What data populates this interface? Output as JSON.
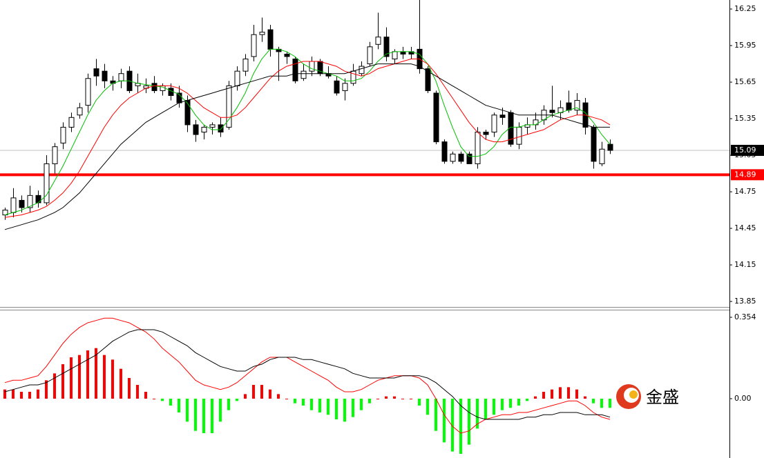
{
  "chart_data": [
    {
      "type": "candlestick",
      "open": [
        14.56,
        14.58,
        14.68,
        14.62,
        14.72,
        14.66,
        14.98,
        15.15,
        15.28,
        15.38,
        15.46,
        15.76,
        15.74,
        15.66,
        15.66,
        15.74,
        15.62,
        15.6,
        15.64,
        15.58,
        15.6,
        15.56,
        15.5,
        15.3,
        15.24,
        15.28,
        15.3,
        15.28,
        15.62,
        15.74,
        15.86,
        16.04,
        16.08,
        15.92,
        15.88,
        15.84,
        15.68,
        15.74,
        15.82,
        15.72,
        15.66,
        15.58,
        15.64,
        15.72,
        15.8,
        15.96,
        16.02,
        15.84,
        15.9,
        15.9,
        15.92,
        15.76,
        15.56,
        15.16,
        15,
        15.06,
        15.06,
        14.98,
        15.24,
        15.24,
        15.38,
        15.4,
        15.14,
        15.28,
        15.3,
        15.34,
        15.42,
        15.4,
        15.48,
        15.42,
        15.48,
        15.28,
        14.98,
        15.14
      ],
      "high": [
        14.62,
        14.78,
        14.72,
        14.8,
        14.76,
        15.05,
        15.15,
        15.32,
        15.4,
        15.48,
        15.72,
        15.84,
        15.8,
        15.7,
        15.76,
        15.78,
        15.72,
        15.68,
        15.7,
        15.64,
        15.64,
        15.62,
        15.54,
        15.34,
        15.3,
        15.32,
        15.36,
        15.66,
        15.78,
        15.88,
        16.12,
        16.18,
        16.12,
        15.94,
        15.9,
        15.86,
        15.8,
        15.86,
        15.84,
        15.78,
        15.7,
        15.68,
        15.8,
        15.82,
        15.98,
        16.22,
        16.1,
        15.92,
        15.94,
        15.94,
        16.36,
        15.78,
        15.58,
        15.18,
        15.08,
        15.08,
        15.08,
        15.28,
        15.26,
        15.4,
        15.44,
        15.42,
        15.32,
        15.36,
        15.4,
        15.46,
        15.62,
        15.5,
        15.58,
        15.56,
        15.52,
        15.3,
        15.16,
        15.18
      ],
      "low": [
        14.52,
        14.54,
        14.58,
        14.58,
        14.62,
        14.64,
        14.9,
        15.1,
        15.24,
        15.35,
        15.4,
        15.62,
        15.6,
        15.58,
        15.6,
        15.56,
        15.56,
        15.56,
        15.56,
        15.54,
        15.5,
        15.44,
        15.24,
        15.16,
        15.18,
        15.22,
        15.2,
        15.26,
        15.58,
        15.7,
        15.82,
        15.98,
        15.86,
        15.66,
        15.8,
        15.64,
        15.66,
        15.7,
        15.7,
        15.68,
        15.54,
        15.5,
        15.62,
        15.7,
        15.78,
        15.92,
        15.82,
        15.8,
        15.84,
        15.84,
        15.72,
        15.56,
        15.14,
        14.98,
        14.98,
        14.98,
        14.98,
        14.94,
        15.18,
        15.2,
        15.3,
        15.12,
        15.1,
        15.22,
        15.26,
        15.3,
        15.36,
        15.34,
        15.4,
        15.38,
        15.22,
        14.94,
        14.96,
        15.06
      ],
      "close": [
        14.6,
        14.7,
        14.62,
        14.72,
        14.66,
        14.98,
        15.12,
        15.28,
        15.36,
        15.44,
        15.68,
        15.7,
        15.66,
        15.64,
        15.72,
        15.58,
        15.64,
        15.62,
        15.58,
        15.62,
        15.54,
        15.48,
        15.3,
        15.22,
        15.28,
        15.3,
        15.24,
        15.62,
        15.74,
        15.84,
        16.04,
        16.06,
        15.92,
        15.9,
        15.86,
        15.66,
        15.74,
        15.82,
        15.72,
        15.7,
        15.56,
        15.64,
        15.74,
        15.78,
        15.94,
        16.02,
        15.86,
        15.9,
        15.88,
        15.88,
        15.76,
        15.58,
        15.16,
        15,
        15.06,
        15,
        14.98,
        15.24,
        15.22,
        15.38,
        15.36,
        15.14,
        15.28,
        15.3,
        15.34,
        15.42,
        15.4,
        15.44,
        15.42,
        15.5,
        15.28,
        15,
        15.1,
        15.09
      ],
      "up_color": "#ffffff",
      "down_color": "#000000",
      "moving_averages": [
        {
          "color": "#00c000",
          "values": [
            14.56,
            14.58,
            14.6,
            14.63,
            14.66,
            14.72,
            14.84,
            14.96,
            15.1,
            15.24,
            15.38,
            15.5,
            15.58,
            15.64,
            15.66,
            15.66,
            15.64,
            15.63,
            15.62,
            15.61,
            15.58,
            15.55,
            15.48,
            15.38,
            15.3,
            15.26,
            15.26,
            15.34,
            15.44,
            15.56,
            15.72,
            15.84,
            15.92,
            15.92,
            15.9,
            15.86,
            15.8,
            15.76,
            15.74,
            15.72,
            15.7,
            15.66,
            15.66,
            15.68,
            15.74,
            15.82,
            15.88,
            15.9,
            15.9,
            15.9,
            15.88,
            15.8,
            15.66,
            15.46,
            15.28,
            15.12,
            15.04,
            15.04,
            15.06,
            15.12,
            15.22,
            15.28,
            15.28,
            15.3,
            15.3,
            15.34,
            15.38,
            15.4,
            15.42,
            15.44,
            15.4,
            15.32,
            15.22,
            15.14
          ]
        },
        {
          "color": "#ff0000",
          "values": [
            14.54,
            14.55,
            14.56,
            14.58,
            14.6,
            14.63,
            14.68,
            14.74,
            14.82,
            14.92,
            15.04,
            15.16,
            15.28,
            15.38,
            15.46,
            15.52,
            15.56,
            15.6,
            15.62,
            15.62,
            15.62,
            15.6,
            15.56,
            15.5,
            15.44,
            15.4,
            15.36,
            15.36,
            15.38,
            15.44,
            15.52,
            15.6,
            15.68,
            15.74,
            15.78,
            15.8,
            15.82,
            15.82,
            15.82,
            15.8,
            15.78,
            15.74,
            15.72,
            15.7,
            15.72,
            15.76,
            15.78,
            15.8,
            15.82,
            15.84,
            15.84,
            15.8,
            15.72,
            15.62,
            15.52,
            15.42,
            15.32,
            15.24,
            15.18,
            15.16,
            15.16,
            15.18,
            15.2,
            15.22,
            15.24,
            15.26,
            15.3,
            15.34,
            15.36,
            15.38,
            15.38,
            15.36,
            15.34,
            15.3
          ]
        },
        {
          "color": "#000000",
          "values": [
            14.44,
            14.46,
            14.48,
            14.5,
            14.52,
            14.55,
            14.58,
            14.62,
            14.68,
            14.74,
            14.82,
            14.9,
            14.98,
            15.06,
            15.14,
            15.2,
            15.26,
            15.32,
            15.36,
            15.4,
            15.44,
            15.48,
            15.5,
            15.52,
            15.54,
            15.56,
            15.58,
            15.6,
            15.62,
            15.64,
            15.66,
            15.68,
            15.7,
            15.7,
            15.7,
            15.72,
            15.72,
            15.72,
            15.72,
            15.72,
            15.72,
            15.72,
            15.74,
            15.76,
            15.78,
            15.8,
            15.8,
            15.8,
            15.8,
            15.8,
            15.78,
            15.74,
            15.7,
            15.66,
            15.62,
            15.58,
            15.54,
            15.5,
            15.46,
            15.44,
            15.42,
            15.4,
            15.38,
            15.38,
            15.38,
            15.38,
            15.38,
            15.36,
            15.34,
            15.32,
            15.3,
            15.28,
            15.28,
            15.28
          ]
        }
      ],
      "ylim": [
        13.805,
        16.324
      ],
      "yticks": [
        13.85,
        14.15,
        14.45,
        14.75,
        15.05,
        15.35,
        15.65,
        15.95,
        16.25
      ],
      "current_price": 15.09,
      "current_price_color": "#000000",
      "current_line_color": "#c0c0c0",
      "support_level": 14.89,
      "support_color": "#ff0000"
    },
    {
      "type": "macd",
      "histogram": [
        0.04,
        0.04,
        0.03,
        0.03,
        0.04,
        0.08,
        0.11,
        0.15,
        0.18,
        0.19,
        0.21,
        0.22,
        0.19,
        0.17,
        0.13,
        0.09,
        0.06,
        0.03,
        0,
        -0.01,
        -0.03,
        -0.06,
        -0.1,
        -0.14,
        -0.15,
        -0.15,
        -0.1,
        -0.05,
        -0.01,
        0.02,
        0.06,
        0.06,
        0.04,
        0.02,
        0,
        -0.02,
        -0.03,
        -0.05,
        -0.06,
        -0.07,
        -0.09,
        -0.1,
        -0.08,
        -0.05,
        -0.02,
        0,
        0.01,
        0.01,
        0,
        0,
        -0.03,
        -0.07,
        -0.14,
        -0.19,
        -0.23,
        -0.24,
        -0.2,
        -0.13,
        -0.09,
        -0.07,
        -0.05,
        -0.04,
        -0.03,
        -0.01,
        0.01,
        0.03,
        0.04,
        0.05,
        0.05,
        0.04,
        0.01,
        -0.02,
        -0.04,
        -0.04
      ],
      "positive_color": "#ff0000",
      "negative_color": "#00ff00",
      "series": [
        {
          "color": "#ff0000",
          "values": [
            0.07,
            0.08,
            0.08,
            0.09,
            0.1,
            0.14,
            0.19,
            0.24,
            0.28,
            0.31,
            0.33,
            0.34,
            0.35,
            0.35,
            0.34,
            0.33,
            0.31,
            0.29,
            0.26,
            0.22,
            0.19,
            0.16,
            0.12,
            0.08,
            0.06,
            0.05,
            0.04,
            0.05,
            0.07,
            0.1,
            0.13,
            0.16,
            0.18,
            0.18,
            0.18,
            0.16,
            0.14,
            0.12,
            0.1,
            0.08,
            0.05,
            0.03,
            0.03,
            0.04,
            0.06,
            0.08,
            0.09,
            0.1,
            0.1,
            0.1,
            0.09,
            0.06,
            0,
            -0.07,
            -0.12,
            -0.15,
            -0.14,
            -0.11,
            -0.09,
            -0.08,
            -0.07,
            -0.07,
            -0.06,
            -0.06,
            -0.05,
            -0.04,
            -0.03,
            -0.02,
            -0.01,
            -0.01,
            -0.03,
            -0.06,
            -0.08,
            -0.09
          ]
        },
        {
          "color": "#000000",
          "values": [
            0.03,
            0.04,
            0.05,
            0.06,
            0.06,
            0.07,
            0.09,
            0.11,
            0.13,
            0.15,
            0.17,
            0.19,
            0.22,
            0.25,
            0.27,
            0.29,
            0.3,
            0.3,
            0.3,
            0.29,
            0.27,
            0.25,
            0.23,
            0.2,
            0.18,
            0.16,
            0.14,
            0.13,
            0.12,
            0.12,
            0.14,
            0.15,
            0.17,
            0.18,
            0.18,
            0.18,
            0.17,
            0.17,
            0.16,
            0.15,
            0.14,
            0.13,
            0.11,
            0.1,
            0.09,
            0.09,
            0.09,
            0.09,
            0.1,
            0.1,
            0.1,
            0.09,
            0.07,
            0.04,
            0.01,
            -0.03,
            -0.06,
            -0.08,
            -0.09,
            -0.09,
            -0.09,
            -0.09,
            -0.09,
            -0.08,
            -0.08,
            -0.07,
            -0.07,
            -0.06,
            -0.06,
            -0.06,
            -0.07,
            -0.07,
            -0.07,
            -0.08
          ]
        }
      ],
      "ylim": [
        -0.258,
        0.384
      ],
      "yticks": [
        {
          "value": 0,
          "label": "0.00"
        },
        0.354
      ]
    }
  ],
  "watermark": "金盛"
}
